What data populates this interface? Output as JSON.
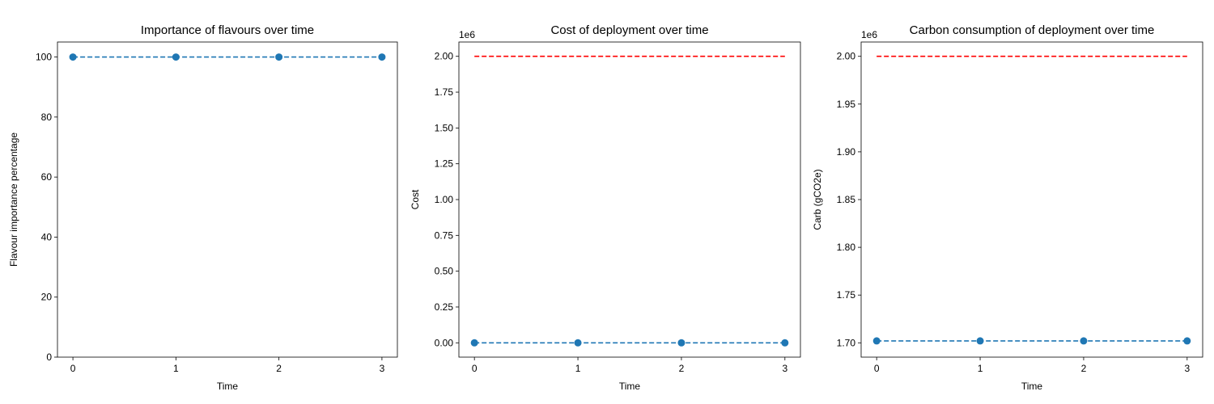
{
  "chart_data": [
    {
      "type": "line",
      "title": "Importance of flavours over time",
      "xlabel": "Time",
      "ylabel": "Flavour importance percentage",
      "offset_text": "",
      "xlim": [
        -0.15,
        3.15
      ],
      "ylim": [
        0,
        105
      ],
      "xticks": [
        0,
        1,
        2,
        3
      ],
      "yticks": [
        0,
        20,
        40,
        60,
        80,
        100
      ],
      "ytick_labels": [
        "0",
        "20",
        "40",
        "60",
        "80",
        "100"
      ],
      "series": [
        {
          "x": [
            0,
            1,
            2,
            3
          ],
          "values": [
            100,
            100,
            100,
            100
          ],
          "color": "#1f77b4",
          "style": "dashed",
          "markers": true
        }
      ]
    },
    {
      "type": "line",
      "title": "Cost of deployment over time",
      "xlabel": "Time",
      "ylabel": "Cost",
      "offset_text": "1e6",
      "xlim": [
        -0.15,
        3.15
      ],
      "ylim": [
        -0.1,
        2.1
      ],
      "xticks": [
        0,
        1,
        2,
        3
      ],
      "yticks": [
        0,
        0.25,
        0.5,
        0.75,
        1.0,
        1.25,
        1.5,
        1.75,
        2.0
      ],
      "ytick_labels": [
        "0.00",
        "0.25",
        "0.50",
        "0.75",
        "1.00",
        "1.25",
        "1.50",
        "1.75",
        "2.00"
      ],
      "series": [
        {
          "x": [
            0,
            3
          ],
          "values": [
            2.0,
            2.0
          ],
          "color": "#ff0000",
          "style": "dashed",
          "markers": false
        },
        {
          "x": [
            0,
            1,
            2,
            3
          ],
          "values": [
            0,
            0,
            0,
            0
          ],
          "color": "#1f77b4",
          "style": "dashed",
          "markers": true
        }
      ]
    },
    {
      "type": "line",
      "title": "Carbon consumption of deployment over time",
      "xlabel": "Time",
      "ylabel": "Carb (gCO2e)",
      "offset_text": "1e6",
      "xlim": [
        -0.15,
        3.15
      ],
      "ylim": [
        1.685,
        2.015
      ],
      "xticks": [
        0,
        1,
        2,
        3
      ],
      "yticks": [
        1.7,
        1.75,
        1.8,
        1.85,
        1.9,
        1.95,
        2.0
      ],
      "ytick_labels": [
        "1.70",
        "1.75",
        "1.80",
        "1.85",
        "1.90",
        "1.95",
        "2.00"
      ],
      "series": [
        {
          "x": [
            0,
            3
          ],
          "values": [
            2.0,
            2.0
          ],
          "color": "#ff0000",
          "style": "dashed",
          "markers": false
        },
        {
          "x": [
            0,
            1,
            2,
            3
          ],
          "values": [
            1.702,
            1.702,
            1.702,
            1.702
          ],
          "color": "#1f77b4",
          "style": "dashed",
          "markers": true
        }
      ]
    }
  ]
}
